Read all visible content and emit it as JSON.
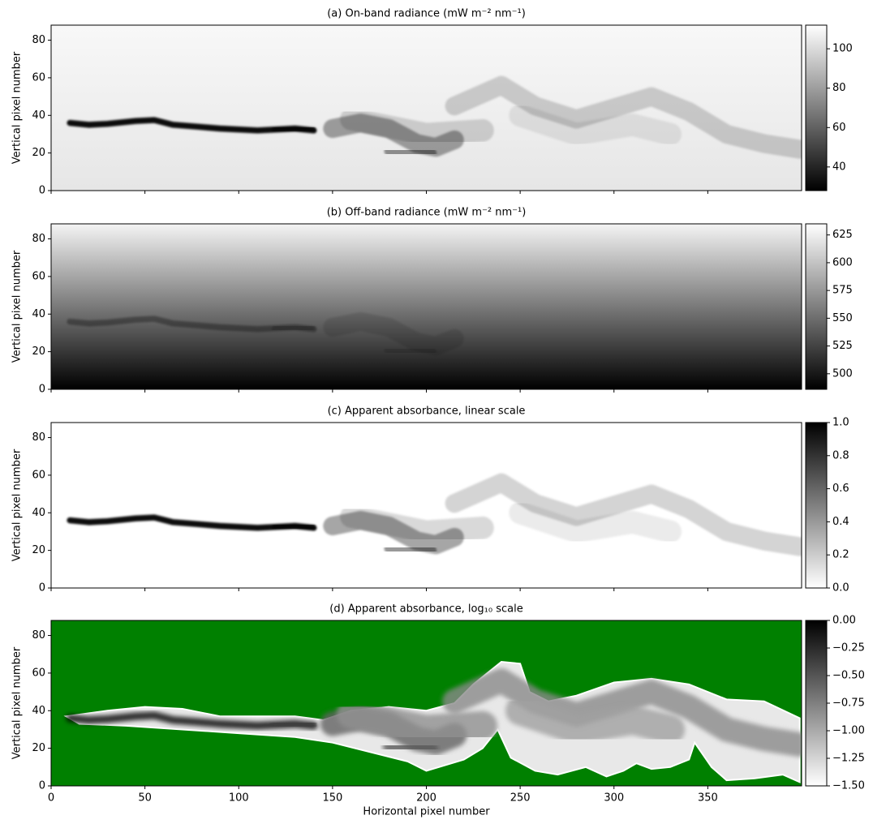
{
  "chart_data": [
    {
      "type": "heatmap",
      "title": "(a) On-band radiance (mW m⁻² nm⁻¹)",
      "ylabel": "Vertical pixel number",
      "xlim": [
        0,
        400
      ],
      "ylim": [
        0,
        88
      ],
      "xticks": [
        0,
        50,
        100,
        150,
        200,
        250,
        300,
        350
      ],
      "yticks": [
        0,
        20,
        40,
        60,
        80
      ],
      "xticklabels": false,
      "cmap": "gray",
      "clim": [
        28,
        112
      ],
      "cticks": [
        40,
        60,
        80,
        100
      ]
    },
    {
      "type": "heatmap",
      "title": "(b) Off-band radiance (mW m⁻² nm⁻¹)",
      "ylabel": "Vertical pixel number",
      "xlim": [
        0,
        400
      ],
      "ylim": [
        0,
        88
      ],
      "xticks": [
        0,
        50,
        100,
        150,
        200,
        250,
        300,
        350
      ],
      "yticks": [
        0,
        20,
        40,
        60,
        80
      ],
      "xticklabels": false,
      "cmap": "gray",
      "clim": [
        486,
        635
      ],
      "cticks": [
        500,
        525,
        550,
        575,
        600,
        625
      ]
    },
    {
      "type": "heatmap",
      "title": "(c) Apparent absorbance, linear scale",
      "ylabel": "Vertical pixel number",
      "xlim": [
        0,
        400
      ],
      "ylim": [
        0,
        88
      ],
      "xticks": [
        0,
        50,
        100,
        150,
        200,
        250,
        300,
        350
      ],
      "yticks": [
        0,
        20,
        40,
        60,
        80
      ],
      "xticklabels": false,
      "cmap": "gray_r",
      "clim": [
        0,
        1
      ],
      "cticks": [
        {
          "value": 0,
          "label": "0.0"
        },
        0.2,
        0.4,
        0.6,
        0.8,
        {
          "value": 1,
          "label": "1.0"
        }
      ]
    },
    {
      "type": "heatmap",
      "title": "(d) Apparent absorbance, log₁₀ scale",
      "ylabel": "Vertical pixel number",
      "xlabel": "Horizontal pixel number",
      "xlim": [
        0,
        400
      ],
      "ylim": [
        0,
        88
      ],
      "xticks": [
        0,
        50,
        100,
        150,
        200,
        250,
        300,
        350
      ],
      "yticks": [
        0,
        20,
        40,
        60,
        80
      ],
      "xticklabels": true,
      "cmap": "gray_r",
      "clim": [
        -1.5,
        0
      ],
      "mask_color": "#008000",
      "cticks": [
        {
          "value": -1.5,
          "label": "−1.50"
        },
        {
          "value": -1.25,
          "label": "−1.25"
        },
        {
          "value": -1,
          "label": "−1.00"
        },
        {
          "value": -0.75,
          "label": "−0.75"
        },
        {
          "value": -0.5,
          "label": "−0.50"
        },
        {
          "value": -0.25,
          "label": "−0.25"
        },
        {
          "value": 0,
          "label": "0.00"
        }
      ]
    }
  ]
}
